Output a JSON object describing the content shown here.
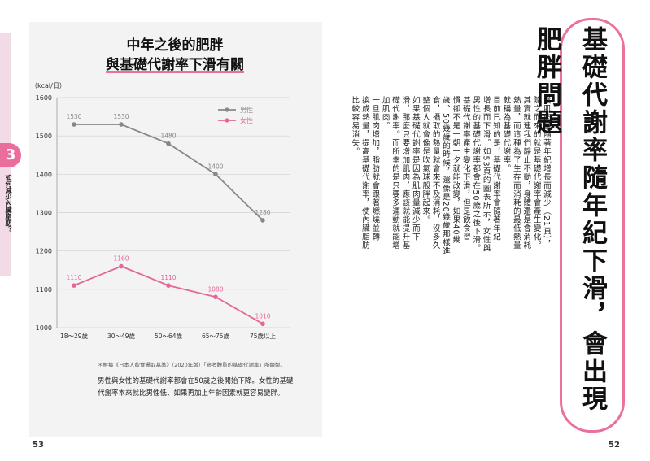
{
  "left": {
    "tab_number": "3",
    "tab_label": "如何減少內臟脂肪？",
    "title_line1": "中年之後的肥胖",
    "title_line2": "與基礎代謝率下滑有關",
    "caption": "＊根據《日本人飲食攝取基準》（2020年版）「參考體重的基礎代謝率」所繪製。",
    "body": "男性與女性的基礎代謝率都會在50歲之後開始下降。女性的基礎代謝率本來就比男性低，如果再加上年齡因素就更容易變胖。",
    "page_number": "53"
  },
  "chart_data": {
    "type": "line",
    "ylabel": "（kcal/日）",
    "ylim": [
      1000,
      1600
    ],
    "yticks": [
      "1000",
      "1100",
      "1200",
      "1300",
      "1400",
      "1500",
      "1600"
    ],
    "categories": [
      "18～29歲",
      "30～49歲",
      "50～64歲",
      "65～75歲",
      "75歲以上"
    ],
    "series": [
      {
        "name": "男性",
        "color": "#888888",
        "values": [
          1530,
          1530,
          1480,
          1400,
          1280
        ]
      },
      {
        "name": "女性",
        "color": "#e5679a",
        "values": [
          1110,
          1160,
          1110,
          1080,
          1010
        ]
      }
    ],
    "grid": true,
    "legend": "top-right"
  },
  "right": {
    "heading": "基礎代謝率隨年紀下滑，會出現肥胖問題",
    "columns": [
      "當肌肉量隨著年紀增長而減少（21頁），",
      "隨之而來的就是基礎代謝率會產生變化。",
      "其實就連我們靜止不動，身體還是會消耗",
      "熱量，而這種為了生存而消耗的最低熱量",
      "就稱為基礎代謝率。",
      "目前已知的是，基礎代謝率會隨著年紀",
      "增長而下滑。如53頁的圖表所示，女性與",
      "男性的基礎代謝率都會在50歲之後下滑。",
      "基礎代謝率產生變化下滑，但是飲食習",
      "慣卻不是一朝一夕就能改變，如果40幾",
      "歲、50幾歲的時候，還像是20幾歲那樣進",
      "食，攝取的熱量就會來不及消耗，沒多久",
      "整個人就會像是吹氣球般胖起來。",
      "如果基礎代謝率是因為肌肉量減少而下",
      "滑，那麼只要增加肌肉，應該就能提升基",
      "礎代謝率。而所幸的是只要多運動就能增",
      "加肌肉。",
      "一旦肌肉增加，脂肪就會跟著燃燒並轉",
      "換成熱量，提高基礎代謝率，使內臟脂肪",
      "比較容易消失。"
    ],
    "page_number": "52"
  }
}
